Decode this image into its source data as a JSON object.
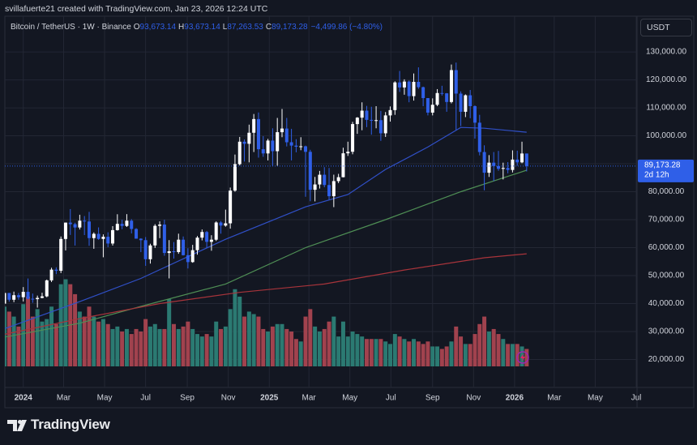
{
  "author": "svillafuerte21 created with TradingView.com, Jan 23, 2026 12:24 UTC",
  "header": {
    "symbol": "Bitcoin / TetherUS · 1W · Binance",
    "ohlc": [
      {
        "key": "O",
        "value": "93,673.14"
      },
      {
        "key": "H",
        "value": "93,673.14"
      },
      {
        "key": "L",
        "value": "87,263.53"
      },
      {
        "key": "C",
        "value": "89,173.28"
      }
    ],
    "change": "−4,499.86 (−4.80%)"
  },
  "currency": "USDT",
  "price_tag": {
    "price": "89,173.28",
    "countdown": "2d 12h"
  },
  "footer": {
    "brand": "TradingView"
  },
  "chart_data": {
    "type": "candlestick",
    "up_color": "#ffffff",
    "down_color": "#2f5fe8",
    "volume_up_color": "#2b7a72",
    "volume_down_color": "#a1424e",
    "grid": true,
    "xlim": [
      "2023-12-07",
      "2026-07-01"
    ],
    "ylim": [
      10000,
      142200
    ],
    "volume_ylim": [
      0,
      1400
    ],
    "yticks": [
      {
        "value": 20000,
        "label": "20,000.00"
      },
      {
        "value": 30000,
        "label": "30,000.00"
      },
      {
        "value": 40000,
        "label": "40,000.00"
      },
      {
        "value": 50000,
        "label": "50,000.00"
      },
      {
        "value": 60000,
        "label": "60,000.00"
      },
      {
        "value": 70000,
        "label": "70,000.00"
      },
      {
        "value": 80000,
        "label": "80,000.00"
      },
      {
        "value": 90000,
        "label": "90,000.00"
      },
      {
        "value": 100000,
        "label": "100,000.00"
      },
      {
        "value": 110000,
        "label": "110,000.00"
      },
      {
        "value": 120000,
        "label": "120,000.00"
      },
      {
        "value": 130000,
        "label": "130,000.00"
      }
    ],
    "xticks": [
      {
        "value": "2024-01-01",
        "label": "2024"
      },
      {
        "value": "2024-03-01",
        "label": "Mar"
      },
      {
        "value": "2024-05-01",
        "label": "May"
      },
      {
        "value": "2024-07-01",
        "label": "Jul"
      },
      {
        "value": "2024-09-01",
        "label": "Sep"
      },
      {
        "value": "2024-11-01",
        "label": "Nov"
      },
      {
        "value": "2025-01-01",
        "label": "2025"
      },
      {
        "value": "2025-03-01",
        "label": "Mar"
      },
      {
        "value": "2025-05-01",
        "label": "May"
      },
      {
        "value": "2025-07-01",
        "label": "Jul"
      },
      {
        "value": "2025-09-01",
        "label": "Sep"
      },
      {
        "value": "2025-11-01",
        "label": "Nov"
      },
      {
        "value": "2026-01-01",
        "label": "2026"
      },
      {
        "value": "2026-03-01",
        "label": "Mar"
      },
      {
        "value": "2026-05-01",
        "label": "May"
      },
      {
        "value": "2026-07-01",
        "label": "Jul"
      }
    ],
    "x": [
      "2023-12-04",
      "2023-12-11",
      "2023-12-18",
      "2023-12-25",
      "2024-01-01",
      "2024-01-08",
      "2024-01-15",
      "2024-01-22",
      "2024-01-29",
      "2024-02-05",
      "2024-02-12",
      "2024-02-19",
      "2024-02-26",
      "2024-03-04",
      "2024-03-11",
      "2024-03-18",
      "2024-03-25",
      "2024-04-01",
      "2024-04-08",
      "2024-04-15",
      "2024-04-22",
      "2024-04-29",
      "2024-05-06",
      "2024-05-13",
      "2024-05-20",
      "2024-05-27",
      "2024-06-03",
      "2024-06-10",
      "2024-06-17",
      "2024-06-24",
      "2024-07-01",
      "2024-07-08",
      "2024-07-15",
      "2024-07-22",
      "2024-07-29",
      "2024-08-05",
      "2024-08-12",
      "2024-08-19",
      "2024-08-26",
      "2024-09-02",
      "2024-09-09",
      "2024-09-16",
      "2024-09-23",
      "2024-09-30",
      "2024-10-07",
      "2024-10-14",
      "2024-10-21",
      "2024-10-28",
      "2024-11-04",
      "2024-11-11",
      "2024-11-18",
      "2024-11-25",
      "2024-12-02",
      "2024-12-09",
      "2024-12-16",
      "2024-12-23",
      "2024-12-30",
      "2025-01-06",
      "2025-01-13",
      "2025-01-20",
      "2025-01-27",
      "2025-02-03",
      "2025-02-10",
      "2025-02-17",
      "2025-02-24",
      "2025-03-03",
      "2025-03-10",
      "2025-03-17",
      "2025-03-24",
      "2025-03-31",
      "2025-04-07",
      "2025-04-14",
      "2025-04-21",
      "2025-04-28",
      "2025-05-05",
      "2025-05-12",
      "2025-05-19",
      "2025-05-26",
      "2025-06-02",
      "2025-06-09",
      "2025-06-16",
      "2025-06-23",
      "2025-06-30",
      "2025-07-07",
      "2025-07-14",
      "2025-07-21",
      "2025-07-28",
      "2025-08-04",
      "2025-08-11",
      "2025-08-18",
      "2025-08-25",
      "2025-09-01",
      "2025-09-08",
      "2025-09-15",
      "2025-09-22",
      "2025-09-29",
      "2025-10-06",
      "2025-10-13",
      "2025-10-20",
      "2025-10-27",
      "2025-11-03",
      "2025-11-10",
      "2025-11-17",
      "2025-11-24",
      "2025-12-01",
      "2025-12-08",
      "2025-12-15",
      "2025-12-22",
      "2025-12-29",
      "2026-01-05",
      "2026-01-12",
      "2026-01-19"
    ],
    "open": [
      39970,
      43790,
      41370,
      42990,
      42280,
      44200,
      41730,
      41580,
      42030,
      42580,
      48300,
      52140,
      51730,
      63110,
      68960,
      68390,
      67210,
      69650,
      69360,
      63420,
      64940,
      63120,
      63890,
      61480,
      66270,
      68510,
      67770,
      69650,
      66680,
      63210,
      62680,
      55860,
      60800,
      67800,
      68250,
      58100,
      58700,
      58420,
      62850,
      57300,
      54840,
      59100,
      63580,
      65600,
      62080,
      62850,
      69000,
      67900,
      68700,
      80400,
      89850,
      97900,
      97150,
      101100,
      106000,
      95200,
      93700,
      98300,
      94500,
      101300,
      102600,
      97700,
      96500,
      96100,
      96250,
      94270,
      80700,
      82600,
      86080,
      82400,
      78400,
      83800,
      85200,
      93750,
      94300,
      104200,
      106500,
      109000,
      105700,
      105550,
      105600,
      100900,
      107300,
      109200,
      119100,
      117300,
      119400,
      114200,
      119300,
      117400,
      113500,
      108300,
      111100,
      115300,
      115200,
      112100,
      123500,
      115100,
      108600,
      114500,
      110600,
      104700,
      94200,
      86800,
      90400,
      89200,
      88200,
      88500,
      87800,
      91500,
      90500,
      93673.14
    ],
    "high": [
      44700,
      43800,
      44280,
      43800,
      45900,
      48970,
      43580,
      42850,
      43880,
      48590,
      52820,
      52980,
      64000,
      69000,
      73800,
      68920,
      71770,
      71300,
      72800,
      65450,
      67250,
      64740,
      65500,
      67700,
      71950,
      70000,
      71990,
      70200,
      66980,
      63370,
      63800,
      61400,
      68400,
      69400,
      70000,
      62700,
      62000,
      65000,
      64000,
      59800,
      61000,
      64150,
      66500,
      66000,
      64450,
      69400,
      69500,
      73600,
      81500,
      93300,
      99600,
      98700,
      104000,
      107800,
      108350,
      99900,
      98900,
      102700,
      106400,
      109600,
      106400,
      102500,
      98800,
      99500,
      96500,
      95000,
      85300,
      87450,
      88800,
      88500,
      86100,
      86400,
      95750,
      97900,
      105000,
      106700,
      111980,
      110700,
      110400,
      110600,
      108900,
      108500,
      110500,
      119500,
      123200,
      120200,
      119800,
      122300,
      124500,
      117600,
      113500,
      113400,
      116700,
      117900,
      115300,
      125500,
      126200,
      115900,
      114800,
      116400,
      110900,
      107500,
      96600,
      93100,
      94200,
      94600,
      90400,
      90600,
      94800,
      94700,
      97900,
      93673.14
    ],
    "low": [
      39700,
      40660,
      40500,
      41400,
      40750,
      41500,
      40280,
      38550,
      41880,
      42260,
      47700,
      50520,
      50900,
      59000,
      64550,
      60760,
      66500,
      64500,
      60660,
      59600,
      62800,
      56550,
      60180,
      60750,
      66100,
      66600,
      67400,
      65100,
      63200,
      58400,
      53500,
      54300,
      59900,
      63400,
      57100,
      49000,
      56100,
      57800,
      57200,
      52550,
      54600,
      57500,
      62600,
      59800,
      58900,
      62400,
      65000,
      67500,
      66800,
      80000,
      89400,
      90800,
      90500,
      94200,
      92200,
      92500,
      91200,
      89250,
      89300,
      99500,
      96200,
      91200,
      94100,
      94850,
      78200,
      76600,
      76550,
      81150,
      81600,
      77150,
      74500,
      83100,
      85150,
      92800,
      93400,
      100700,
      102000,
      103100,
      100400,
      102700,
      98200,
      99600,
      105100,
      107500,
      115700,
      114700,
      112000,
      112600,
      116800,
      110600,
      107300,
      107300,
      110600,
      114400,
      108600,
      111600,
      102000,
      103500,
      106700,
      106300,
      99000,
      93000,
      80500,
      85300,
      83800,
      87500,
      84400,
      86600,
      86900,
      89300,
      90200,
      87263.53
    ],
    "close": [
      43790,
      41370,
      42990,
      42280,
      44200,
      41730,
      41580,
      42030,
      42580,
      48300,
      52140,
      51730,
      63110,
      68960,
      68390,
      67210,
      69650,
      69360,
      63420,
      64940,
      63120,
      63890,
      61480,
      66270,
      68510,
      67770,
      69650,
      66680,
      63210,
      62680,
      55860,
      60800,
      67800,
      68250,
      58100,
      58700,
      58420,
      62850,
      57300,
      54840,
      59100,
      63580,
      65600,
      62080,
      62850,
      69000,
      67900,
      68700,
      80400,
      89850,
      97900,
      97150,
      101100,
      106000,
      95200,
      93700,
      98300,
      94500,
      101300,
      102600,
      97700,
      96500,
      96100,
      96250,
      94270,
      80700,
      82600,
      86080,
      82400,
      78400,
      83800,
      85200,
      93750,
      94300,
      104200,
      106500,
      109000,
      105700,
      105550,
      105600,
      100900,
      107300,
      109200,
      119100,
      117300,
      119400,
      114200,
      119300,
      117400,
      113500,
      108300,
      111100,
      115300,
      115200,
      112100,
      123500,
      115100,
      108600,
      114500,
      110600,
      104700,
      94200,
      86800,
      90400,
      89200,
      88200,
      88500,
      87800,
      91500,
      90500,
      93673.14,
      89173.28
    ],
    "volume": [
      240,
      220,
      200,
      160,
      250,
      280,
      200,
      230,
      180,
      190,
      240,
      170,
      330,
      350,
      330,
      290,
      220,
      200,
      240,
      200,
      180,
      190,
      170,
      150,
      160,
      140,
      150,
      130,
      150,
      140,
      190,
      160,
      170,
      150,
      150,
      270,
      170,
      150,
      160,
      180,
      150,
      130,
      120,
      130,
      120,
      180,
      150,
      160,
      230,
      310,
      280,
      200,
      220,
      210,
      200,
      150,
      140,
      160,
      170,
      170,
      150,
      140,
      110,
      100,
      200,
      230,
      160,
      140,
      150,
      180,
      200,
      120,
      180,
      120,
      140,
      130,
      120,
      110,
      110,
      110,
      110,
      100,
      90,
      130,
      120,
      110,
      100,
      110,
      100,
      90,
      100,
      80,
      80,
      70,
      80,
      100,
      160,
      120,
      90,
      90,
      130,
      170,
      200,
      140,
      150,
      130,
      110,
      90,
      90,
      90,
      80,
      70
    ],
    "lines": [
      {
        "color": "#3050c8",
        "x": [
          "2023-12-04",
          "2024-03-25",
          "2024-06-24",
          "2024-10-28",
          "2025-02-24",
          "2025-04-28",
          "2025-06-23",
          "2025-08-25",
          "2025-10-13",
          "2025-11-17",
          "2026-01-19"
        ],
        "values": [
          31000,
          40700,
          49000,
          63000,
          74600,
          79000,
          88000,
          96000,
          103000,
          102700,
          101300
        ]
      },
      {
        "color": "#4f8f55",
        "x": [
          "2023-12-04",
          "2024-03-25",
          "2024-06-24",
          "2024-10-28",
          "2025-02-24",
          "2025-06-23",
          "2025-10-13",
          "2026-01-19"
        ],
        "values": [
          28000,
          33000,
          39000,
          47000,
          60000,
          70000,
          80000,
          87700
        ]
      },
      {
        "color": "#a8343b",
        "x": [
          "2023-12-04",
          "2024-03-25",
          "2024-07-22",
          "2024-11-18",
          "2025-03-24",
          "2025-07-21",
          "2025-11-17",
          "2026-01-19"
        ],
        "values": [
          29000,
          34600,
          40000,
          44000,
          47000,
          52000,
          56400,
          57800
        ]
      }
    ]
  }
}
